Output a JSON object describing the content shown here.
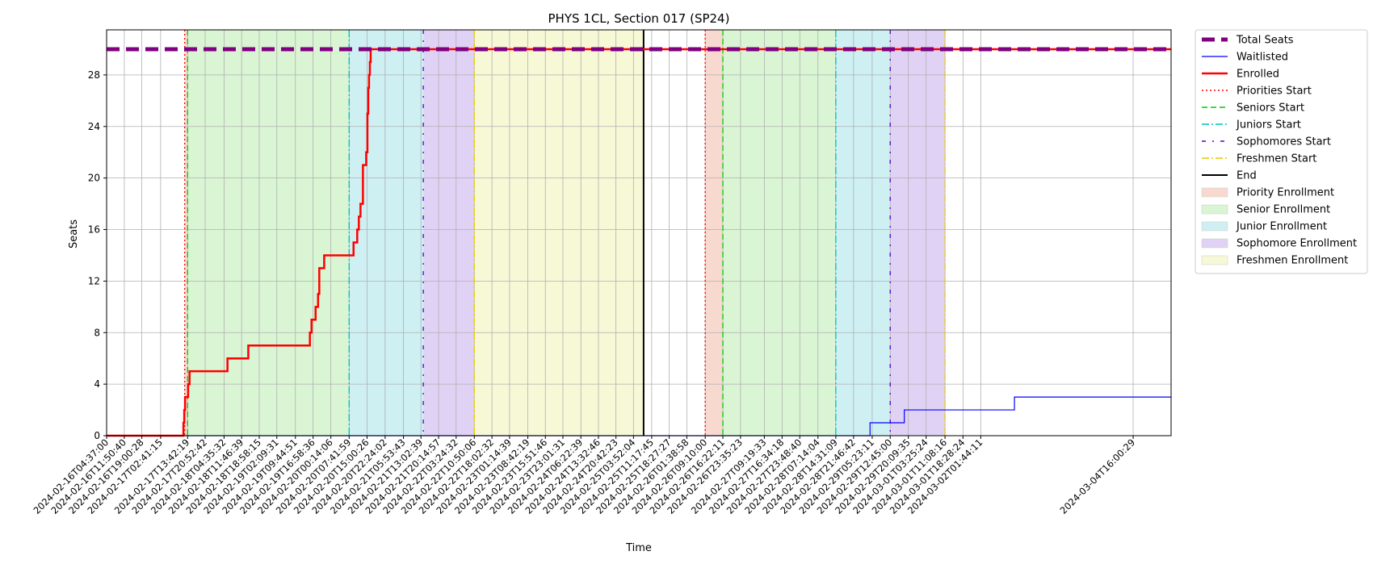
{
  "chart_data": {
    "type": "line",
    "title": "PHYS 1CL, Section 017 (SP24)",
    "xlabel": "Time",
    "ylabel": "Seats",
    "ylim": [
      0,
      31.5
    ],
    "yticks": [
      0,
      4,
      8,
      12,
      16,
      20,
      24,
      28
    ],
    "xlim": [
      "2024-02-16T04:37:00",
      "2024-03-05T07:30:00"
    ],
    "xticks": [
      "2024-02-16T04:37:00",
      "2024-02-16T11:50:40",
      "2024-02-16T19:00:28",
      "2024-02-17T02:41:15",
      "2024-02-17T13:42:19",
      "2024-02-17T20:52:42",
      "2024-02-18T04:35:32",
      "2024-02-18T11:46:39",
      "2024-02-18T18:58:15",
      "2024-02-19T02:09:31",
      "2024-02-19T09:44:51",
      "2024-02-19T16:58:36",
      "2024-02-20T00:14:06",
      "2024-02-20T07:41:59",
      "2024-02-20T15:00:26",
      "2024-02-20T22:24:02",
      "2024-02-21T05:53:43",
      "2024-02-21T13:02:39",
      "2024-02-21T20:14:57",
      "2024-02-22T03:24:32",
      "2024-02-22T10:50:06",
      "2024-02-22T18:02:32",
      "2024-02-23T01:14:39",
      "2024-02-23T08:42:19",
      "2024-02-23T15:51:46",
      "2024-02-23T23:01:31",
      "2024-02-24T06:22:39",
      "2024-02-24T13:32:46",
      "2024-02-24T20:42:23",
      "2024-02-25T03:52:04",
      "2024-02-25T11:17:45",
      "2024-02-25T18:27:27",
      "2024-02-26T01:38:58",
      "2024-02-26T09:10:00",
      "2024-02-26T16:22:11",
      "2024-02-26T23:35:23",
      "2024-02-27T09:19:33",
      "2024-02-27T16:34:18",
      "2024-02-27T23:48:40",
      "2024-02-28T07:14:04",
      "2024-02-28T14:31:09",
      "2024-02-28T21:46:42",
      "2024-02-29T05:23:11",
      "2024-02-29T12:45:00",
      "2024-02-29T20:09:35",
      "2024-03-01T03:25:24",
      "2024-03-01T11:08:16",
      "2024-03-01T18:28:24",
      "2024-03-02T01:44:11",
      "2024-03-04T16:00:29"
    ],
    "grid": true,
    "legend_placement": "outside-upper-right",
    "series": [
      {
        "name": "Total Seats",
        "color": "#800080",
        "style": "dashed-thick",
        "steps": [
          [
            "2024-02-16T04:37:00",
            30
          ]
        ]
      },
      {
        "name": "Waitlisted",
        "color": "#0000ff",
        "style": "solid-thin",
        "steps": [
          [
            "2024-02-16T04:37:00",
            0
          ],
          [
            "2024-02-29T04:30:00",
            1
          ],
          [
            "2024-02-29T18:30:00",
            2
          ],
          [
            "2024-03-02T15:30:00",
            3
          ]
        ]
      },
      {
        "name": "Enrolled",
        "color": "#ff0000",
        "style": "solid-thick",
        "steps": [
          [
            "2024-02-16T04:37:00",
            0
          ],
          [
            "2024-02-17T12:00:00",
            1
          ],
          [
            "2024-02-17T12:20:00",
            2
          ],
          [
            "2024-02-17T12:40:00",
            3
          ],
          [
            "2024-02-17T13:55:00",
            4
          ],
          [
            "2024-02-17T14:30:00",
            5
          ],
          [
            "2024-02-18T06:00:00",
            6
          ],
          [
            "2024-02-18T14:30:00",
            7
          ],
          [
            "2024-02-19T15:40:00",
            8
          ],
          [
            "2024-02-19T16:20:00",
            9
          ],
          [
            "2024-02-19T18:00:00",
            10
          ],
          [
            "2024-02-19T19:00:00",
            11
          ],
          [
            "2024-02-19T19:30:00",
            13
          ],
          [
            "2024-02-19T21:30:00",
            14
          ],
          [
            "2024-02-20T09:30:00",
            15
          ],
          [
            "2024-02-20T11:00:00",
            16
          ],
          [
            "2024-02-20T11:40:00",
            17
          ],
          [
            "2024-02-20T12:20:00",
            18
          ],
          [
            "2024-02-20T13:20:00",
            21
          ],
          [
            "2024-02-20T14:40:00",
            22
          ],
          [
            "2024-02-20T15:10:00",
            25
          ],
          [
            "2024-02-20T15:30:00",
            27
          ],
          [
            "2024-02-20T15:50:00",
            28
          ],
          [
            "2024-02-20T16:10:00",
            29
          ],
          [
            "2024-02-20T16:30:00",
            30
          ]
        ]
      }
    ],
    "markers": [
      {
        "name": "Priorities Start",
        "time": "2024-02-17T12:30:00",
        "color": "#ff0000",
        "style": "dotted"
      },
      {
        "name": "Seniors Start",
        "time": "2024-02-17T13:42:19",
        "color": "#00cc00",
        "style": "dashed"
      },
      {
        "name": "Juniors Start",
        "time": "2024-02-20T07:41:59",
        "color": "#00bfbf",
        "style": "dashdot"
      },
      {
        "name": "Sophomores Start",
        "time": "2024-02-21T14:00:00",
        "color": "#5500cc",
        "style": "sparse-dashdot"
      },
      {
        "name": "Freshmen Start",
        "time": "2024-02-22T10:50:06",
        "color": "#e6cc00",
        "style": "dashdot"
      },
      {
        "name": "End",
        "time": "2024-02-25T08:00:00",
        "color": "#000000",
        "style": "solid"
      },
      {
        "name": "Priorities Start",
        "time": "2024-02-26T09:10:00",
        "color": "#ff0000",
        "style": "dotted"
      },
      {
        "name": "Seniors Start",
        "time": "2024-02-26T16:22:11",
        "color": "#00cc00",
        "style": "dashed"
      },
      {
        "name": "Juniors Start",
        "time": "2024-02-28T14:31:09",
        "color": "#00bfbf",
        "style": "dashdot"
      },
      {
        "name": "Sophomores Start",
        "time": "2024-02-29T12:45:00",
        "color": "#5500cc",
        "style": "sparse-dashdot"
      },
      {
        "name": "Freshmen Start",
        "time": "2024-03-01T11:08:16",
        "color": "#e6cc00",
        "style": "dashdot"
      }
    ],
    "spans": [
      {
        "name": "Priority Enrollment",
        "start": "2024-02-17T12:30:00",
        "end": "2024-02-17T13:42:19",
        "color": "#f8d9d0"
      },
      {
        "name": "Senior Enrollment",
        "start": "2024-02-17T13:42:19",
        "end": "2024-02-20T07:41:59",
        "color": "#d9f5d4"
      },
      {
        "name": "Junior Enrollment",
        "start": "2024-02-20T07:41:59",
        "end": "2024-02-21T14:00:00",
        "color": "#cef0f3"
      },
      {
        "name": "Sophomore Enrollment",
        "start": "2024-02-21T14:00:00",
        "end": "2024-02-22T10:50:06",
        "color": "#e0d2f5"
      },
      {
        "name": "Freshmen Enrollment",
        "start": "2024-02-22T10:50:06",
        "end": "2024-02-25T08:00:00",
        "color": "#f7f8d6"
      },
      {
        "name": "Priority Enrollment",
        "start": "2024-02-26T09:10:00",
        "end": "2024-02-26T16:22:11",
        "color": "#f8d9d0"
      },
      {
        "name": "Senior Enrollment",
        "start": "2024-02-26T16:22:11",
        "end": "2024-02-28T14:31:09",
        "color": "#d9f5d4"
      },
      {
        "name": "Junior Enrollment",
        "start": "2024-02-28T14:31:09",
        "end": "2024-02-29T12:45:00",
        "color": "#cef0f3"
      },
      {
        "name": "Sophomore Enrollment",
        "start": "2024-02-29T12:45:00",
        "end": "2024-03-01T11:08:16",
        "color": "#e0d2f5"
      }
    ],
    "legend": [
      {
        "label": "Total Seats",
        "kind": "line",
        "color": "#800080",
        "style": "dashed-thick"
      },
      {
        "label": "Waitlisted",
        "kind": "line",
        "color": "#0000ff",
        "style": "solid-thin"
      },
      {
        "label": "Enrolled",
        "kind": "line",
        "color": "#ff0000",
        "style": "solid-thick"
      },
      {
        "label": "Priorities Start",
        "kind": "line",
        "color": "#ff0000",
        "style": "dotted"
      },
      {
        "label": "Seniors Start",
        "kind": "line",
        "color": "#00cc00",
        "style": "dashed"
      },
      {
        "label": "Juniors Start",
        "kind": "line",
        "color": "#00bfbf",
        "style": "dashdot"
      },
      {
        "label": "Sophomores Start",
        "kind": "line",
        "color": "#5500cc",
        "style": "sparse-dashdot"
      },
      {
        "label": "Freshmen Start",
        "kind": "line",
        "color": "#e6cc00",
        "style": "dashdot"
      },
      {
        "label": "End",
        "kind": "line",
        "color": "#000000",
        "style": "solid"
      },
      {
        "label": "Priority Enrollment",
        "kind": "patch",
        "color": "#f8d9d0"
      },
      {
        "label": "Senior Enrollment",
        "kind": "patch",
        "color": "#d9f5d4"
      },
      {
        "label": "Junior Enrollment",
        "kind": "patch",
        "color": "#cef0f3"
      },
      {
        "label": "Sophomore Enrollment",
        "kind": "patch",
        "color": "#e0d2f5"
      },
      {
        "label": "Freshmen Enrollment",
        "kind": "patch",
        "color": "#f7f8d6"
      }
    ]
  }
}
